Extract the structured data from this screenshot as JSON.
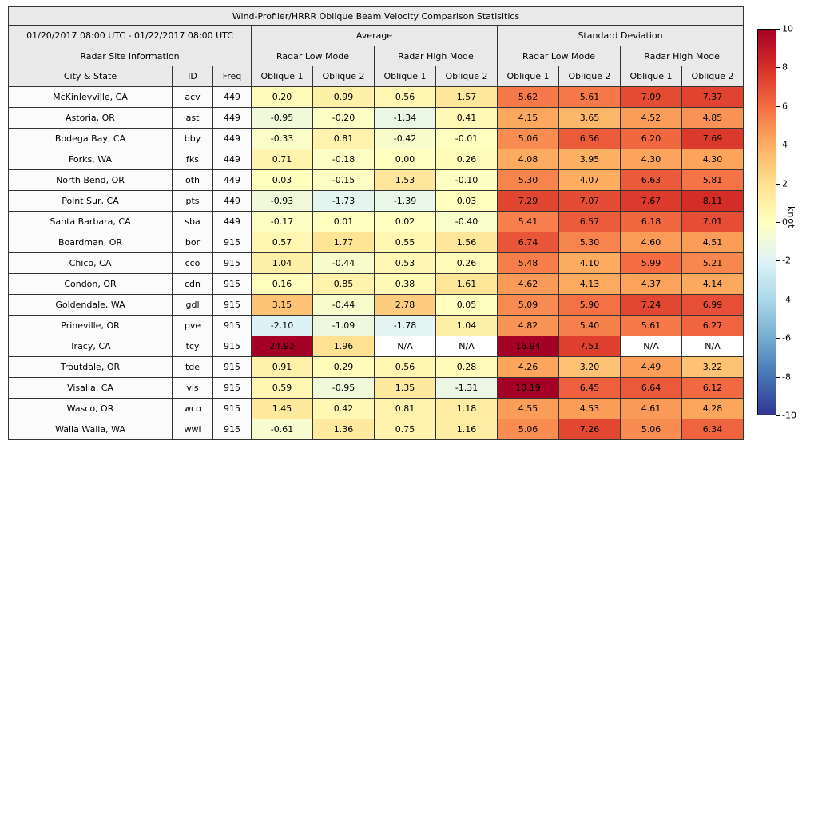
{
  "title": "Wind-Profiler/HRRR Oblique Beam Velocity Comparison Statisitics",
  "header": {
    "date_range": "01/20/2017 08:00 UTC - 01/22/2017 08:00 UTC",
    "group_average": "Average",
    "group_std": "Standard Deviation",
    "site_info": "Radar Site Information",
    "mode_low": "Radar Low Mode",
    "mode_high": "Radar High Mode",
    "col_city": "City & State",
    "col_id": "ID",
    "col_freq": "Freq",
    "col_oblique1": "Oblique 1",
    "col_oblique2": "Oblique 2"
  },
  "colorbar": {
    "label": "knot",
    "min": -10,
    "max": 10,
    "ticks": [
      "10",
      "8",
      "6",
      "4",
      "2",
      "0",
      "-2",
      "-4",
      "-6",
      "-8",
      "-10"
    ],
    "colors_low_to_high": [
      "#313695",
      "#4575b4",
      "#74add1",
      "#abd9e9",
      "#e0f3f8",
      "#ffffbf",
      "#fee090",
      "#fdae61",
      "#f46d43",
      "#d73027",
      "#a50026"
    ],
    "na_color": "#ffffff"
  },
  "chart_data": {
    "type": "table",
    "columns": [
      "City & State",
      "ID",
      "Freq",
      "Avg Low Mode Oblique 1",
      "Avg Low Mode Oblique 2",
      "Avg High Mode Oblique 1",
      "Avg High Mode Oblique 2",
      "Std Low Mode Oblique 1",
      "Std Low Mode Oblique 2",
      "Std High Mode Oblique 1",
      "Std High Mode Oblique 2"
    ],
    "value_units": "knot",
    "color_scale_range": [
      -10,
      10
    ],
    "rows": [
      {
        "city": "McKinleyville, CA",
        "id": "acv",
        "freq": "449",
        "values": [
          "0.20",
          "0.99",
          "0.56",
          "1.57",
          "5.62",
          "5.61",
          "7.09",
          "7.37"
        ]
      },
      {
        "city": "Astoria, OR",
        "id": "ast",
        "freq": "449",
        "values": [
          "-0.95",
          "-0.20",
          "-1.34",
          "0.41",
          "4.15",
          "3.65",
          "4.52",
          "4.85"
        ]
      },
      {
        "city": "Bodega Bay, CA",
        "id": "bby",
        "freq": "449",
        "values": [
          "-0.33",
          "0.81",
          "-0.42",
          "-0.01",
          "5.06",
          "6.56",
          "6.20",
          "7.69"
        ]
      },
      {
        "city": "Forks, WA",
        "id": "fks",
        "freq": "449",
        "values": [
          "0.71",
          "-0.18",
          "0.00",
          "0.26",
          "4.08",
          "3.95",
          "4.30",
          "4.30"
        ]
      },
      {
        "city": "North Bend, OR",
        "id": "oth",
        "freq": "449",
        "values": [
          "0.03",
          "-0.15",
          "1.53",
          "-0.10",
          "5.30",
          "4.07",
          "6.63",
          "5.81"
        ]
      },
      {
        "city": "Point Sur, CA",
        "id": "pts",
        "freq": "449",
        "values": [
          "-0.93",
          "-1.73",
          "-1.39",
          "0.03",
          "7.29",
          "7.07",
          "7.67",
          "8.11"
        ]
      },
      {
        "city": "Santa Barbara, CA",
        "id": "sba",
        "freq": "449",
        "values": [
          "-0.17",
          "0.01",
          "0.02",
          "-0.40",
          "5.41",
          "6.57",
          "6.18",
          "7.01"
        ]
      },
      {
        "city": "Boardman, OR",
        "id": "bor",
        "freq": "915",
        "values": [
          "0.57",
          "1.77",
          "0.55",
          "1.56",
          "6.74",
          "5.30",
          "4.60",
          "4.51"
        ]
      },
      {
        "city": "Chico, CA",
        "id": "cco",
        "freq": "915",
        "values": [
          "1.04",
          "-0.44",
          "0.53",
          "0.26",
          "5.48",
          "4.10",
          "5.99",
          "5.21"
        ]
      },
      {
        "city": "Condon, OR",
        "id": "cdn",
        "freq": "915",
        "values": [
          "0.16",
          "0.85",
          "0.38",
          "1.61",
          "4.62",
          "4.13",
          "4.37",
          "4.14"
        ]
      },
      {
        "city": "Goldendale, WA",
        "id": "gdl",
        "freq": "915",
        "values": [
          "3.15",
          "-0.44",
          "2.78",
          "0.05",
          "5.09",
          "5.90",
          "7.24",
          "6.99"
        ]
      },
      {
        "city": "Prineville, OR",
        "id": "pve",
        "freq": "915",
        "values": [
          "-2.10",
          "-1.09",
          "-1.78",
          "1.04",
          "4.82",
          "5.40",
          "5.61",
          "6.27"
        ]
      },
      {
        "city": "Tracy, CA",
        "id": "tcy",
        "freq": "915",
        "values": [
          "24.92",
          "1.96",
          "N/A",
          "N/A",
          "16.94",
          "7.51",
          "N/A",
          "N/A"
        ]
      },
      {
        "city": "Troutdale, OR",
        "id": "tde",
        "freq": "915",
        "values": [
          "0.91",
          "0.29",
          "0.56",
          "0.28",
          "4.26",
          "3.20",
          "4.49",
          "3.22"
        ]
      },
      {
        "city": "Visalia, CA",
        "id": "vis",
        "freq": "915",
        "values": [
          "0.59",
          "-0.95",
          "1.35",
          "-1.31",
          "10.19",
          "6.45",
          "6.64",
          "6.12"
        ]
      },
      {
        "city": "Wasco, OR",
        "id": "wco",
        "freq": "915",
        "values": [
          "1.45",
          "0.42",
          "0.81",
          "1.18",
          "4.55",
          "4.53",
          "4.61",
          "4.28"
        ]
      },
      {
        "city": "Walla Walla, WA",
        "id": "wwl",
        "freq": "915",
        "values": [
          "-0.61",
          "1.36",
          "0.75",
          "1.16",
          "5.06",
          "7.26",
          "5.06",
          "6.34"
        ]
      }
    ]
  }
}
